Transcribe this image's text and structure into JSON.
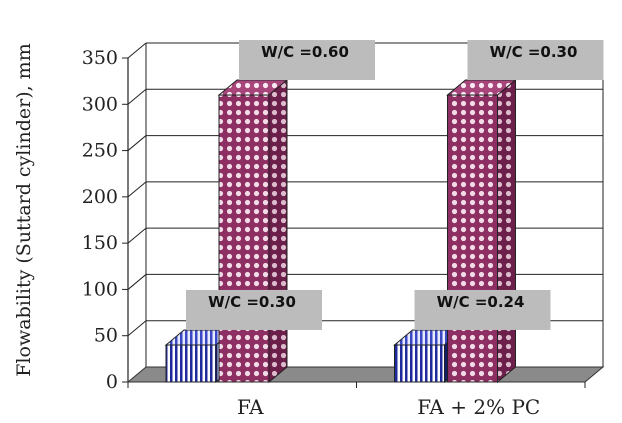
{
  "chart_data": {
    "type": "bar",
    "style": "3d-clustered-column",
    "ylabel": "Flowability (Suttard cylinder), mm",
    "xlabel": "",
    "title": "",
    "ylim": [
      0,
      350
    ],
    "yticks": [
      0,
      50,
      100,
      150,
      200,
      250,
      300,
      350
    ],
    "grid": true,
    "categories": [
      "FA",
      "FA + 2% PC"
    ],
    "series": [
      {
        "values": [
          40,
          40
        ],
        "pattern": "vertical-stripes",
        "color": "#1f2a9c"
      },
      {
        "values": [
          310,
          310
        ],
        "pattern": "dots",
        "color": "#9c3a70"
      }
    ],
    "annotations": [
      {
        "text": "W/C =0.30",
        "category": "FA",
        "series_index": 0
      },
      {
        "text": "W/C =0.60",
        "category": "FA",
        "series_index": 1
      },
      {
        "text": "W/C =0.24",
        "category": "FA + 2% PC",
        "series_index": 0
      },
      {
        "text": "W/C =0.30",
        "category": "FA + 2% PC",
        "series_index": 1
      }
    ]
  }
}
